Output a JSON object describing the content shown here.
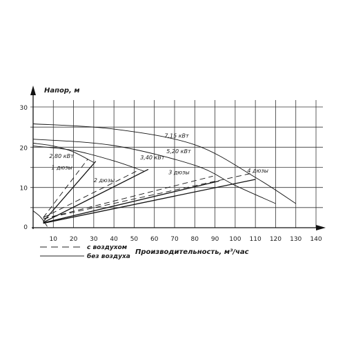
{
  "chart_data": {
    "type": "line",
    "ylabel": "Напор, м",
    "xlabel": "Производительность, м³/час",
    "xlim": [
      0,
      140
    ],
    "ylim": [
      0,
      30
    ],
    "x_ticks": [
      "10",
      "20",
      "30",
      "40",
      "50",
      "60",
      "70",
      "80",
      "90",
      "100",
      "110",
      "120",
      "130",
      "140"
    ],
    "y_ticks": [
      "0",
      "10",
      "20",
      "30"
    ],
    "grid": true,
    "legend": {
      "placement": "bottom-left",
      "entries": [
        {
          "label": "с воздухом",
          "style": "dashed"
        },
        {
          "label": "без воздуха",
          "style": "solid"
        }
      ]
    },
    "pump_curves": [
      {
        "name": "2,80 кВт",
        "points": [
          [
            0,
            21
          ],
          [
            10,
            20.3
          ],
          [
            20,
            18.8
          ],
          [
            30,
            16.2
          ]
        ]
      },
      {
        "name": "3,40 кВт",
        "points": [
          [
            0,
            20.3
          ],
          [
            20,
            19.2
          ],
          [
            40,
            16.6
          ],
          [
            55,
            14
          ]
        ]
      },
      {
        "name": "5,20 кВт",
        "points": [
          [
            0,
            22
          ],
          [
            40,
            20.4
          ],
          [
            80,
            15.5
          ],
          [
            100,
            10.5
          ],
          [
            120,
            6
          ]
        ]
      },
      {
        "name": "7,15 кВт",
        "points": [
          [
            0,
            25.8
          ],
          [
            40,
            24.5
          ],
          [
            80,
            20.6
          ],
          [
            110,
            12.5
          ],
          [
            130,
            6
          ]
        ]
      }
    ],
    "system_curves": [
      {
        "name": "1 дюзы",
        "with_air": [
          [
            5,
            2.5
          ],
          [
            27,
            17
          ]
        ],
        "without_air": [
          [
            5,
            1.5
          ],
          [
            31,
            16.5
          ]
        ]
      },
      {
        "name": "2 дюзы",
        "with_air": [
          [
            5,
            2.5
          ],
          [
            51,
            14
          ]
        ],
        "without_air": [
          [
            5,
            1.3
          ],
          [
            57,
            14.5
          ]
        ]
      },
      {
        "name": "3 дюзы",
        "with_air": [
          [
            5,
            2.2
          ],
          [
            89,
            12.8
          ]
        ],
        "without_air": [
          [
            5,
            1.2
          ],
          [
            92,
            11.6
          ]
        ]
      },
      {
        "name": "4 дюзы",
        "with_air": [
          [
            5,
            2.2
          ],
          [
            108,
            13.5
          ]
        ],
        "without_air": [
          [
            5,
            1.1
          ],
          [
            110,
            12
          ]
        ]
      }
    ],
    "near_zero_curve": {
      "points": [
        [
          0,
          4.2
        ],
        [
          3,
          3
        ],
        [
          5,
          1.8
        ],
        [
          7,
          0.3
        ]
      ]
    }
  }
}
